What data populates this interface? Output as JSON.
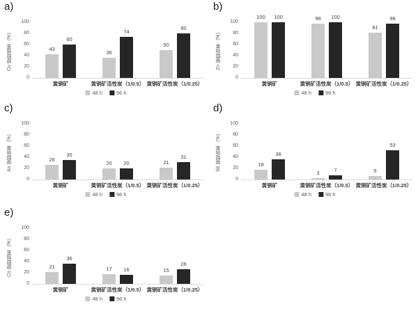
{
  "figure": {
    "background": "#ffffff",
    "series_colors": {
      "48 h": "#c9c9c9",
      "96 h": "#262626"
    },
    "axis_line_color": "#d9d9d9"
  },
  "chart_data": [
    {
      "id": "a",
      "panel_label": "a)",
      "type": "bar",
      "title": "",
      "xlabel": "",
      "ylabel": "Cu 提取效率（%）",
      "ylim": [
        0,
        100
      ],
      "yticks": [
        0,
        20,
        40,
        60,
        80,
        100
      ],
      "grid": false,
      "legend_position": "bottom",
      "categories": [
        "黄铜矿",
        "黄铜矿活性炭（1/0.5）",
        "黄铜矿活性炭（1/0.25）"
      ],
      "series": [
        {
          "name": "48 h",
          "color": "#c9c9c9",
          "values": [
            43,
            36,
            50
          ]
        },
        {
          "name": "96 h",
          "color": "#262626",
          "values": [
            60,
            74,
            80
          ]
        }
      ]
    },
    {
      "id": "b",
      "panel_label": "b)",
      "type": "bar",
      "title": "",
      "xlabel": "",
      "ylabel": "Zn 提取效率（%）",
      "ylim": [
        0,
        100
      ],
      "yticks": [
        0,
        20,
        40,
        60,
        80,
        100
      ],
      "grid": false,
      "legend_position": "bottom",
      "categories": [
        "黄铜矿",
        "黄铜矿活性炭（1/0.5）",
        "黄铜矿活性炭（1/0.25）"
      ],
      "series": [
        {
          "name": "48 h",
          "color": "#c9c9c9",
          "values": [
            100,
            98,
            81
          ]
        },
        {
          "name": "96 h",
          "color": "#262626",
          "values": [
            100,
            100,
            98
          ]
        }
      ]
    },
    {
      "id": "c",
      "panel_label": "c)",
      "type": "bar",
      "title": "",
      "xlabel": "",
      "ylabel": "As 提取效率（%）",
      "ylim": [
        0,
        100
      ],
      "yticks": [
        0,
        20,
        40,
        60,
        80,
        100
      ],
      "grid": false,
      "legend_position": "bottom",
      "categories": [
        "黄铜矿",
        "黄铜矿活性炭（1/0.5）",
        "黄铜矿活性炭（1/0.25）"
      ],
      "series": [
        {
          "name": "48 h",
          "color": "#c9c9c9",
          "values": [
            26,
            20,
            21
          ]
        },
        {
          "name": "96 h",
          "color": "#262626",
          "values": [
            35,
            20,
            31
          ]
        }
      ]
    },
    {
      "id": "d",
      "panel_label": "d)",
      "type": "bar",
      "title": "",
      "xlabel": "",
      "ylabel": "Sb 提取效率（%）",
      "ylim": [
        0,
        100
      ],
      "yticks": [
        0,
        20,
        40,
        60,
        80,
        100
      ],
      "grid": false,
      "legend_position": "bottom",
      "categories": [
        "黄铜矿",
        "黄铜矿活性炭（1/0.5）",
        "黄铜矿活性炭（1/0.25）"
      ],
      "series": [
        {
          "name": "48 h",
          "color": "#c9c9c9",
          "values": [
            18,
            3,
            6
          ]
        },
        {
          "name": "96 h",
          "color": "#262626",
          "values": [
            36,
            7,
            53
          ]
        }
      ]
    },
    {
      "id": "e",
      "panel_label": "e)",
      "type": "bar",
      "title": "",
      "xlabel": "",
      "ylabel": "Co 提取效率（%）",
      "ylim": [
        0,
        100
      ],
      "yticks": [
        0,
        20,
        40,
        60,
        80,
        100
      ],
      "grid": false,
      "legend_position": "bottom",
      "categories": [
        "黄铜矿",
        "黄铜矿活性炭（1/0.5）",
        "黄铜矿活性炭（1/0.25）"
      ],
      "series": [
        {
          "name": "48 h",
          "color": "#c9c9c9",
          "values": [
            21,
            17,
            15
          ]
        },
        {
          "name": "96 h",
          "color": "#262626",
          "values": [
            36,
            16,
            26
          ]
        }
      ]
    }
  ]
}
